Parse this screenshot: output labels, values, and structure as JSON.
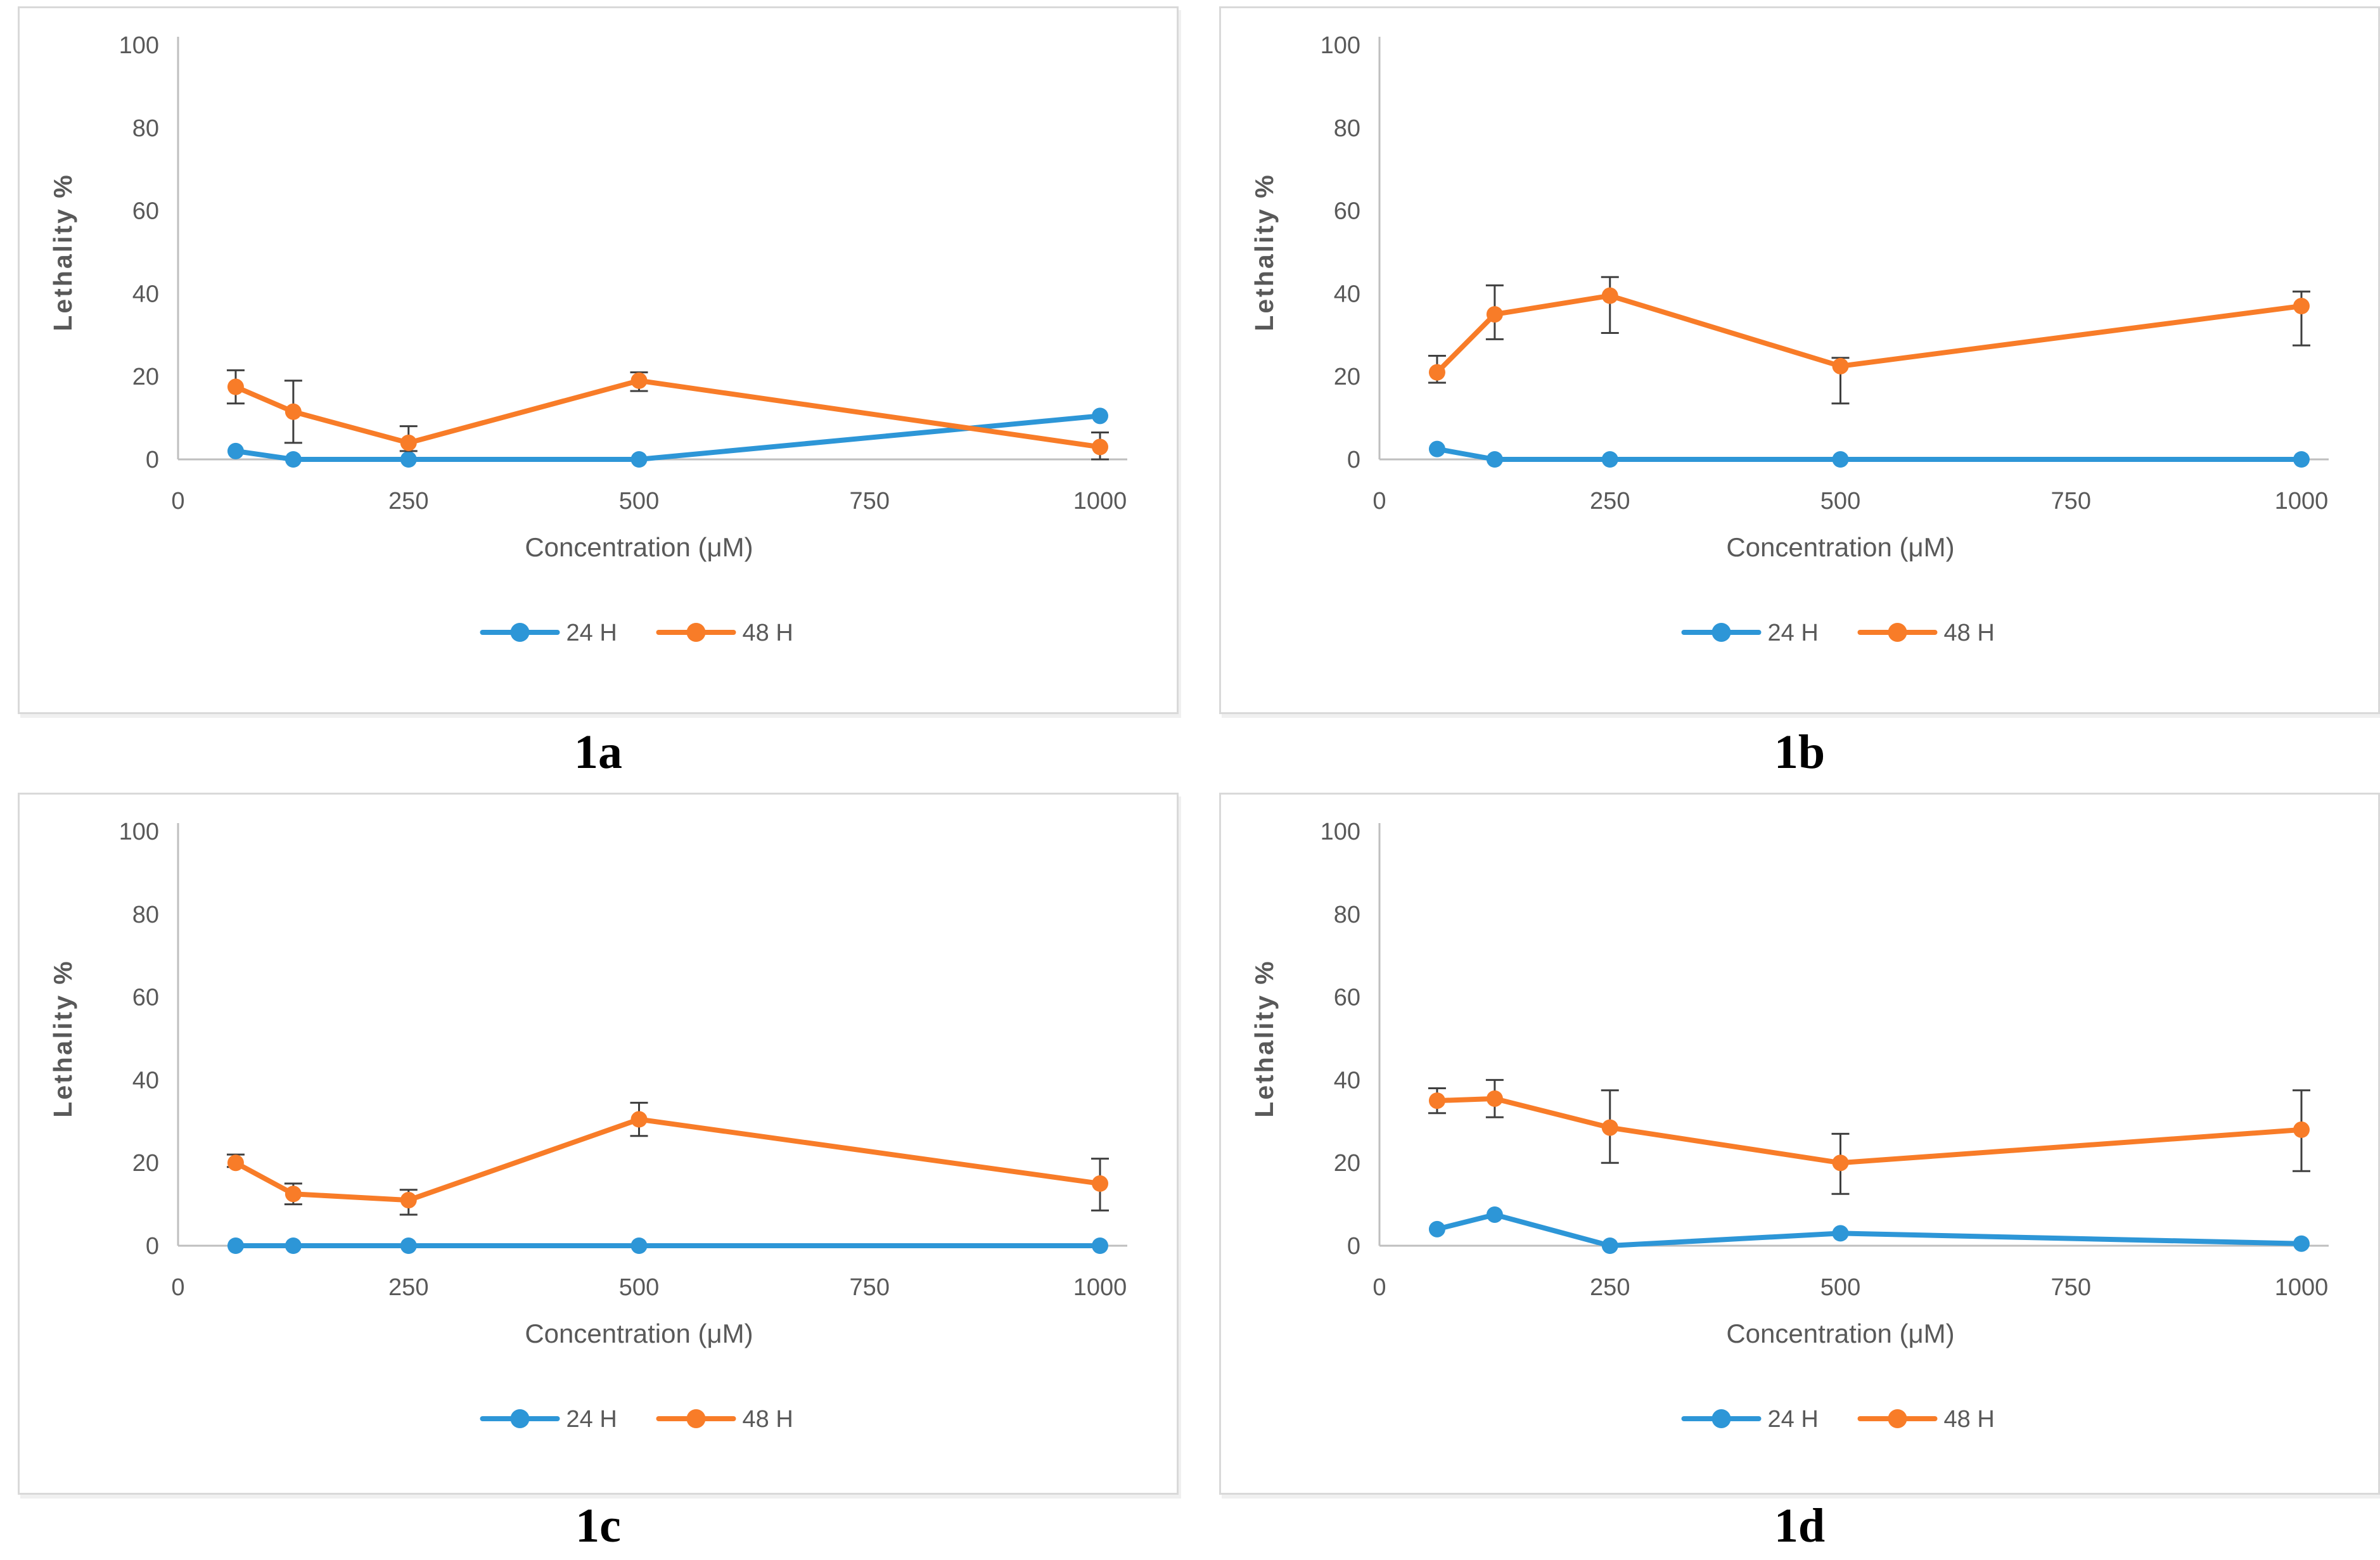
{
  "style": {
    "series_colors": {
      "h24": "#2D96D7",
      "h48": "#F87C28"
    },
    "error_bar_color": "#3F3F3F",
    "axis_line_color": "#BFBFBF",
    "text_color": "#595959",
    "panel_border_color": "#D9D9D9"
  },
  "chart_data": [
    {
      "id": "1a",
      "caption": "1a",
      "type": "line",
      "xlabel": "Concentration (μM)",
      "ylabel": "Lethality %",
      "legend_position": "bottom",
      "grid": "off",
      "xlim": [
        0,
        1050
      ],
      "ylim": [
        0,
        100
      ],
      "xticks": [
        0,
        250,
        500,
        750,
        1000
      ],
      "yticks": [
        0,
        20,
        40,
        60,
        80,
        100
      ],
      "x": [
        62.5,
        125,
        250,
        500,
        1000
      ],
      "series": [
        {
          "name": "24 H",
          "color_key": "h24",
          "values": [
            2,
            0,
            0,
            0,
            10.5
          ],
          "err_up": [
            0,
            0,
            0,
            0,
            0
          ],
          "err_down": [
            0,
            0,
            0,
            0,
            0
          ]
        },
        {
          "name": "48 H",
          "color_key": "h48",
          "values": [
            17.5,
            11.5,
            4,
            19,
            3
          ],
          "err_up": [
            4,
            7.5,
            4,
            2,
            3.5
          ],
          "err_down": [
            4,
            7.5,
            2,
            2.5,
            3
          ]
        }
      ]
    },
    {
      "id": "1b",
      "caption": "1b",
      "type": "line",
      "xlabel": "Concentration (μM)",
      "ylabel": "Lethality %",
      "legend_position": "bottom",
      "grid": "off",
      "xlim": [
        0,
        1050
      ],
      "ylim": [
        0,
        100
      ],
      "xticks": [
        0,
        250,
        500,
        750,
        1000
      ],
      "yticks": [
        0,
        20,
        40,
        60,
        80,
        100
      ],
      "x": [
        62.5,
        125,
        250,
        500,
        1000
      ],
      "series": [
        {
          "name": "24 H",
          "color_key": "h24",
          "values": [
            2.5,
            0,
            0,
            0,
            0
          ],
          "err_up": [
            0,
            0,
            0,
            0,
            0
          ],
          "err_down": [
            0,
            0,
            0,
            0,
            0
          ]
        },
        {
          "name": "48 H",
          "color_key": "h48",
          "values": [
            21,
            35,
            39.5,
            22.5,
            37
          ],
          "err_up": [
            4,
            7,
            4.5,
            2,
            3.5
          ],
          "err_down": [
            2.5,
            6,
            9,
            9,
            9.5
          ]
        }
      ]
    },
    {
      "id": "1c",
      "caption": "1c",
      "type": "line",
      "xlabel": "Concentration (μM)",
      "ylabel": "Lethality %",
      "legend_position": "bottom",
      "grid": "off",
      "xlim": [
        0,
        1050
      ],
      "ylim": [
        0,
        100
      ],
      "xticks": [
        0,
        250,
        500,
        750,
        1000
      ],
      "yticks": [
        0,
        20,
        40,
        60,
        80,
        100
      ],
      "x": [
        62.5,
        125,
        250,
        500,
        1000
      ],
      "series": [
        {
          "name": "24 H",
          "color_key": "h24",
          "values": [
            0,
            0,
            0,
            0,
            0
          ],
          "err_up": [
            0,
            0,
            0,
            0,
            0
          ],
          "err_down": [
            0,
            0,
            0,
            0,
            0
          ]
        },
        {
          "name": "48 H",
          "color_key": "h48",
          "values": [
            20,
            12.5,
            11,
            30.5,
            15
          ],
          "err_up": [
            2,
            2.5,
            2.5,
            4,
            6
          ],
          "err_down": [
            1,
            2.5,
            3.5,
            4,
            6.5
          ]
        }
      ]
    },
    {
      "id": "1d",
      "caption": "1d",
      "type": "line",
      "xlabel": "Concentration (μM)",
      "ylabel": "Lethality %",
      "legend_position": "bottom",
      "grid": "off",
      "xlim": [
        0,
        1050
      ],
      "ylim": [
        0,
        100
      ],
      "xticks": [
        0,
        250,
        500,
        750,
        1000
      ],
      "yticks": [
        0,
        20,
        40,
        60,
        80,
        100
      ],
      "x": [
        62.5,
        125,
        250,
        500,
        1000
      ],
      "series": [
        {
          "name": "24 H",
          "color_key": "h24",
          "values": [
            4,
            7.5,
            0,
            3,
            0.5
          ],
          "err_up": [
            0,
            0,
            0,
            0,
            0
          ],
          "err_down": [
            0,
            0,
            0,
            0,
            0
          ]
        },
        {
          "name": "48 H",
          "color_key": "h48",
          "values": [
            35,
            35.5,
            28.5,
            20,
            28
          ],
          "err_up": [
            3,
            4.5,
            9,
            7,
            9.5
          ],
          "err_down": [
            3,
            4.5,
            8.5,
            7.5,
            10
          ]
        }
      ]
    }
  ]
}
